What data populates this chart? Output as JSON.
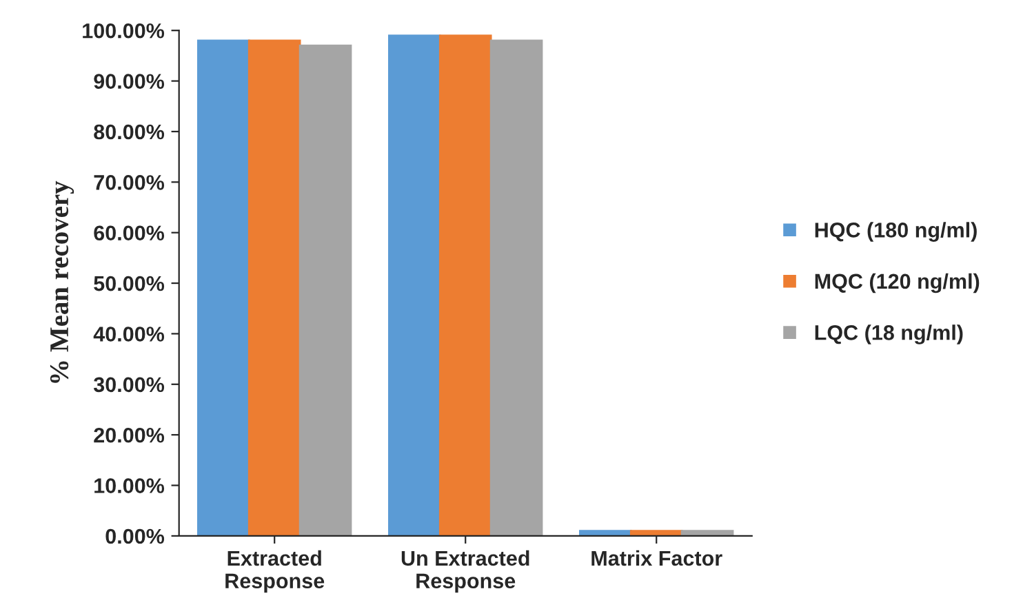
{
  "chart_data": {
    "type": "bar",
    "ylabel": "% Mean recovery",
    "categories": [
      "Extracted\nResponse",
      "Un Extracted\nResponse",
      "Matrix Factor"
    ],
    "series": [
      {
        "name": "HQC (180 ng/ml)",
        "color": "#5b9bd5",
        "values": [
          98,
          99,
          1
        ]
      },
      {
        "name": "MQC (120 ng/ml)",
        "color": "#ed7d31",
        "values": [
          98,
          99,
          1
        ]
      },
      {
        "name": "LQC (18 ng/ml)",
        "color": "#a5a5a5",
        "values": [
          97,
          98,
          1
        ]
      }
    ],
    "ylim": [
      0,
      100
    ],
    "yticks": [
      {
        "value": 0,
        "label": "0.00%"
      },
      {
        "value": 10,
        "label": "10.00%"
      },
      {
        "value": 20,
        "label": "20.00%"
      },
      {
        "value": 30,
        "label": "30.00%"
      },
      {
        "value": 40,
        "label": "40.00%"
      },
      {
        "value": 50,
        "label": "50.00%"
      },
      {
        "value": 60,
        "label": "60.00%"
      },
      {
        "value": 70,
        "label": "70.00%"
      },
      {
        "value": 80,
        "label": "80.00%"
      },
      {
        "value": 90,
        "label": "90.00%"
      },
      {
        "value": 100,
        "label": "100.00%"
      }
    ],
    "grid": false,
    "legend": "right"
  }
}
